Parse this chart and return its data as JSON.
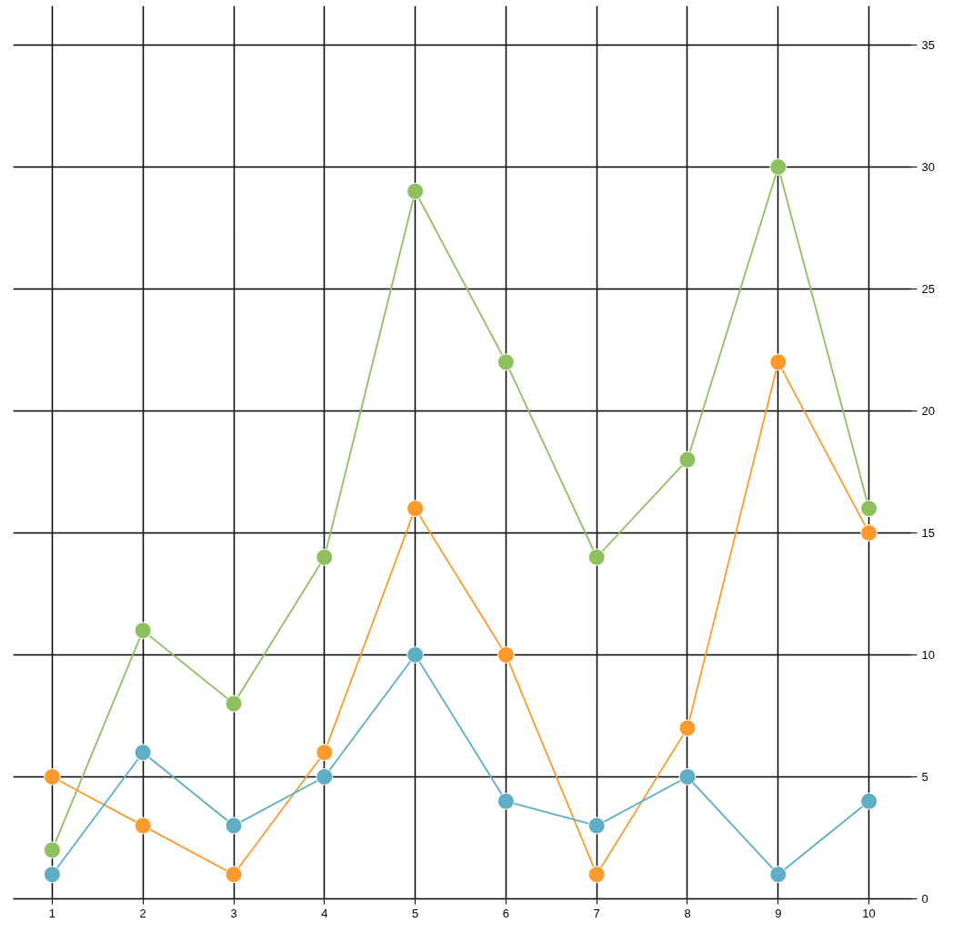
{
  "chart_data": {
    "type": "line",
    "x": [
      1,
      2,
      3,
      4,
      5,
      6,
      7,
      8,
      9,
      10
    ],
    "series": [
      {
        "color": "#8fc05f",
        "values": [
          2,
          11,
          8,
          14,
          29,
          22,
          14,
          18,
          30,
          16
        ]
      },
      {
        "color": "#fd9a2e",
        "values": [
          5,
          3,
          1,
          6,
          16,
          10,
          1,
          7,
          22,
          15
        ]
      },
      {
        "color": "#5eafc6",
        "values": [
          1,
          6,
          3,
          5,
          10,
          4,
          3,
          5,
          1,
          4
        ]
      }
    ],
    "xlim": [
      0.57,
      10.47
    ],
    "ylim": [
      0,
      36.6
    ],
    "xticks": [
      1,
      2,
      3,
      4,
      5,
      6,
      7,
      8,
      9,
      10
    ],
    "yticks": [
      0,
      5,
      10,
      15,
      20,
      25,
      30,
      35
    ],
    "grid": true,
    "marker": "circle",
    "line_style": "solid"
  }
}
